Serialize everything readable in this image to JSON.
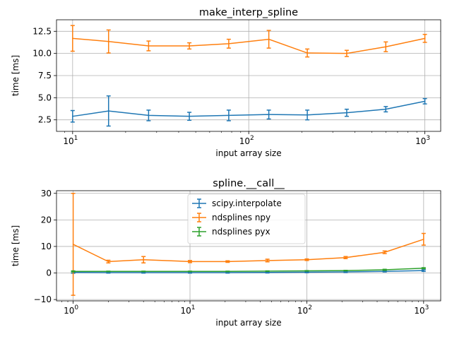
{
  "chart_data": [
    {
      "type": "line",
      "title": "make_interp_spline",
      "xlabel": "input array size",
      "ylabel": "time [ms]",
      "xscale": "log",
      "xlim": [
        8.1,
        1230
      ],
      "ylim": [
        1.2,
        13.8
      ],
      "grid": true,
      "x": [
        10,
        16,
        27,
        46,
        77,
        130,
        215,
        360,
        600,
        1000
      ],
      "xticks": [
        10,
        100,
        1000
      ],
      "xtick_labels": [
        [
          "10",
          "1"
        ],
        [
          "10",
          "2"
        ],
        [
          "10",
          "3"
        ]
      ],
      "yticks": [
        2.5,
        5.0,
        7.5,
        10.0,
        12.5
      ],
      "ytick_labels": [
        "2.5",
        "5.0",
        "7.5",
        "10.0",
        "12.5"
      ],
      "series": [
        {
          "color": "#1f77b4",
          "values": [
            2.9,
            3.5,
            3.0,
            2.9,
            3.0,
            3.1,
            3.05,
            3.3,
            3.7,
            4.6
          ],
          "errors": [
            0.65,
            1.7,
            0.6,
            0.45,
            0.6,
            0.5,
            0.55,
            0.4,
            0.3,
            0.3
          ]
        },
        {
          "color": "#ff7f0e",
          "values": [
            11.7,
            11.35,
            10.85,
            10.85,
            11.1,
            11.6,
            10.05,
            10.0,
            10.75,
            11.7
          ],
          "errors": [
            1.45,
            1.3,
            0.55,
            0.35,
            0.5,
            1.0,
            0.45,
            0.35,
            0.55,
            0.45
          ]
        }
      ]
    },
    {
      "type": "line",
      "title": "spline.__call__",
      "xlabel": "input array size",
      "ylabel": "time [ms]",
      "xscale": "log",
      "xlim": [
        0.72,
        1400
      ],
      "ylim": [
        -10.5,
        31
      ],
      "grid": true,
      "legend_position": "upper center",
      "x": [
        1,
        2,
        4,
        10,
        21,
        46,
        100,
        215,
        464,
        1000
      ],
      "xticks": [
        1,
        10,
        100,
        1000
      ],
      "xtick_labels": [
        [
          "10",
          "0"
        ],
        [
          "10",
          "1"
        ],
        [
          "10",
          "2"
        ],
        [
          "10",
          "3"
        ]
      ],
      "yticks": [
        -10,
        0,
        10,
        20,
        30
      ],
      "ytick_labels": [
        "−10",
        "0",
        "10",
        "20",
        "30"
      ],
      "series": [
        {
          "name": "scipy.interpolate",
          "color": "#1f77b4",
          "values": [
            0.2,
            0.15,
            0.15,
            0.15,
            0.15,
            0.2,
            0.3,
            0.4,
            0.6,
            0.9
          ],
          "errors": [
            0.3,
            0.2,
            0.2,
            0.2,
            0.2,
            0.2,
            0.2,
            0.2,
            0.2,
            0.3
          ]
        },
        {
          "name": "ndsplines npy",
          "color": "#ff7f0e",
          "values": [
            10.8,
            4.3,
            5.0,
            4.3,
            4.3,
            4.7,
            5.0,
            5.8,
            7.8,
            12.7
          ],
          "errors": [
            19.2,
            0.5,
            1.2,
            0.4,
            0.3,
            0.5,
            0.3,
            0.4,
            0.5,
            2.2
          ]
        },
        {
          "name": "ndsplines pyx",
          "color": "#2ca02c",
          "values": [
            0.6,
            0.6,
            0.6,
            0.6,
            0.6,
            0.7,
            0.8,
            0.9,
            1.2,
            1.8
          ],
          "errors": [
            0.2,
            0.1,
            0.1,
            0.1,
            0.1,
            0.1,
            0.1,
            0.1,
            0.2,
            0.2
          ]
        }
      ]
    }
  ]
}
